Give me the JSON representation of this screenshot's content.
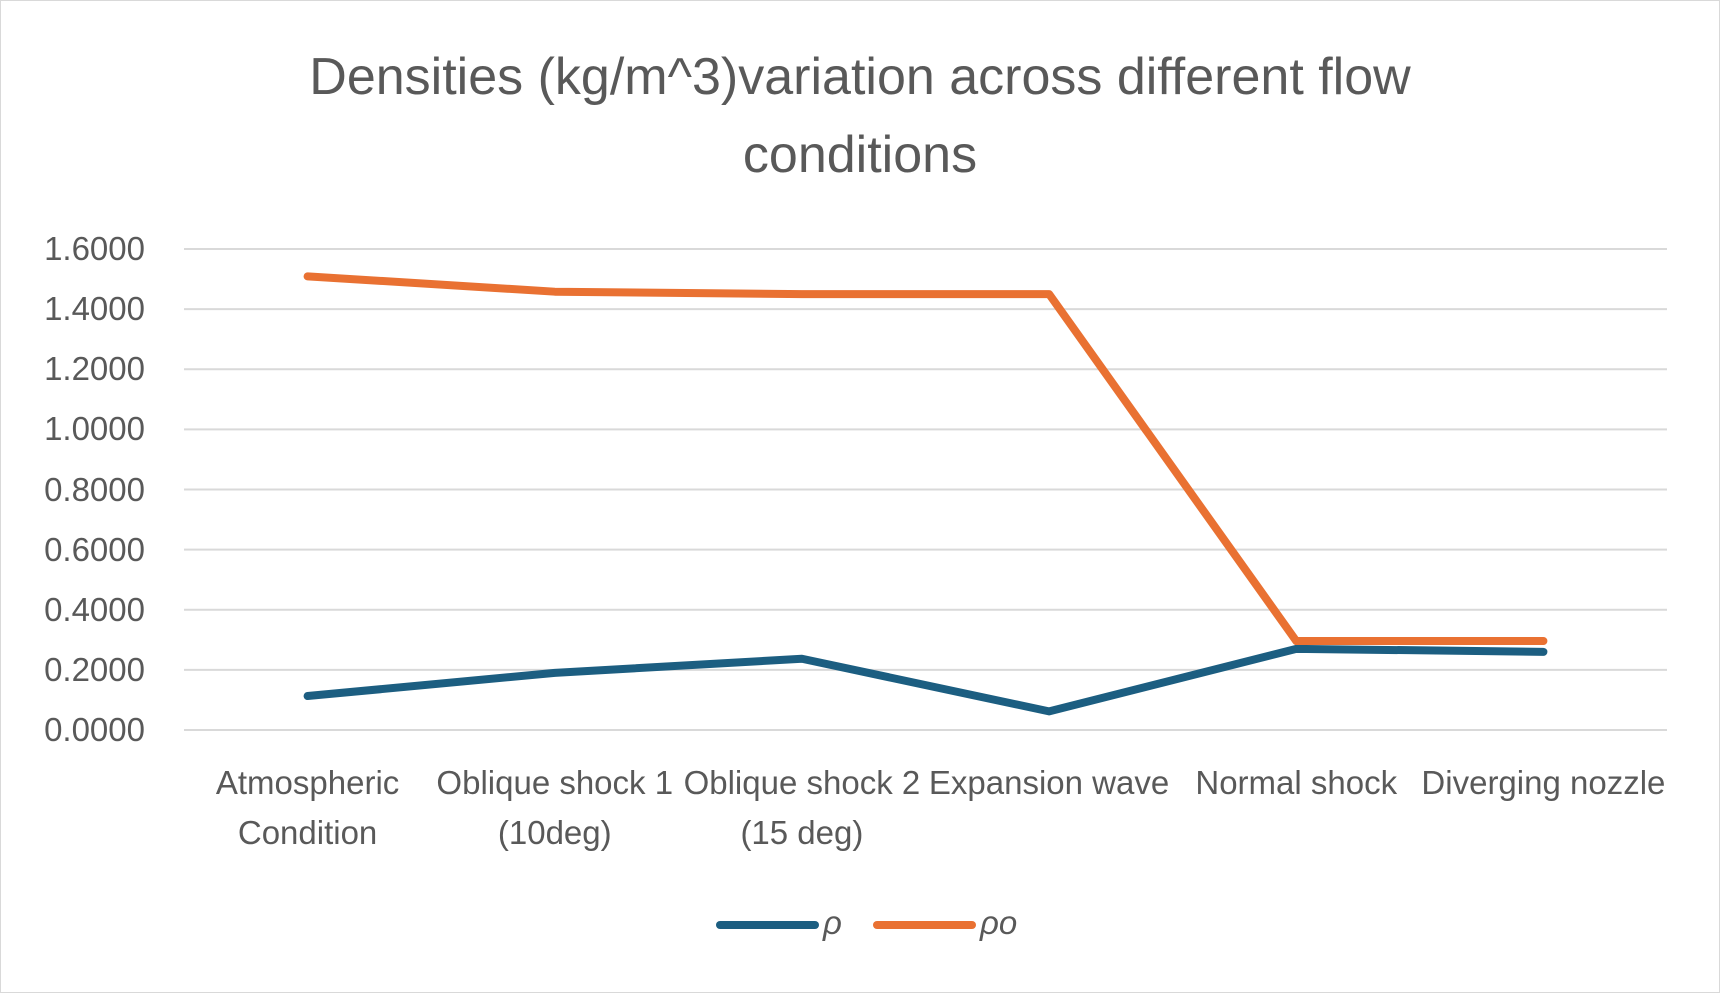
{
  "chart_data": {
    "type": "line",
    "title": "Densities (kg/m^3)variation across different flow conditions",
    "categories": [
      "Atmospheric Condition",
      "Oblique shock 1 (10deg)",
      "Oblique shock 2 (15 deg)",
      "Expansion wave",
      "Normal shock",
      "Diverging nozzle"
    ],
    "series": [
      {
        "name": "ρ",
        "color": "#1c5e81",
        "values": [
          0.113,
          0.19,
          0.237,
          0.062,
          0.27,
          0.26
        ]
      },
      {
        "name": "ρo",
        "color": "#e97132",
        "values": [
          1.509,
          1.458,
          1.45,
          1.45,
          0.296,
          0.296
        ]
      }
    ],
    "ylim": [
      0,
      1.6
    ],
    "yticks": [
      {
        "value": 0,
        "label": "0.0000"
      },
      {
        "value": 0.2,
        "label": "0.2000"
      },
      {
        "value": 0.4,
        "label": "0.4000"
      },
      {
        "value": 0.6,
        "label": "0.6000"
      },
      {
        "value": 0.8,
        "label": "0.8000"
      },
      {
        "value": 1.0,
        "label": "1.0000"
      },
      {
        "value": 1.2,
        "label": "1.2000"
      },
      {
        "value": 1.4,
        "label": "1.4000"
      },
      {
        "value": 1.6,
        "label": "1.6000"
      }
    ],
    "grid": true,
    "legend": "bottom"
  }
}
